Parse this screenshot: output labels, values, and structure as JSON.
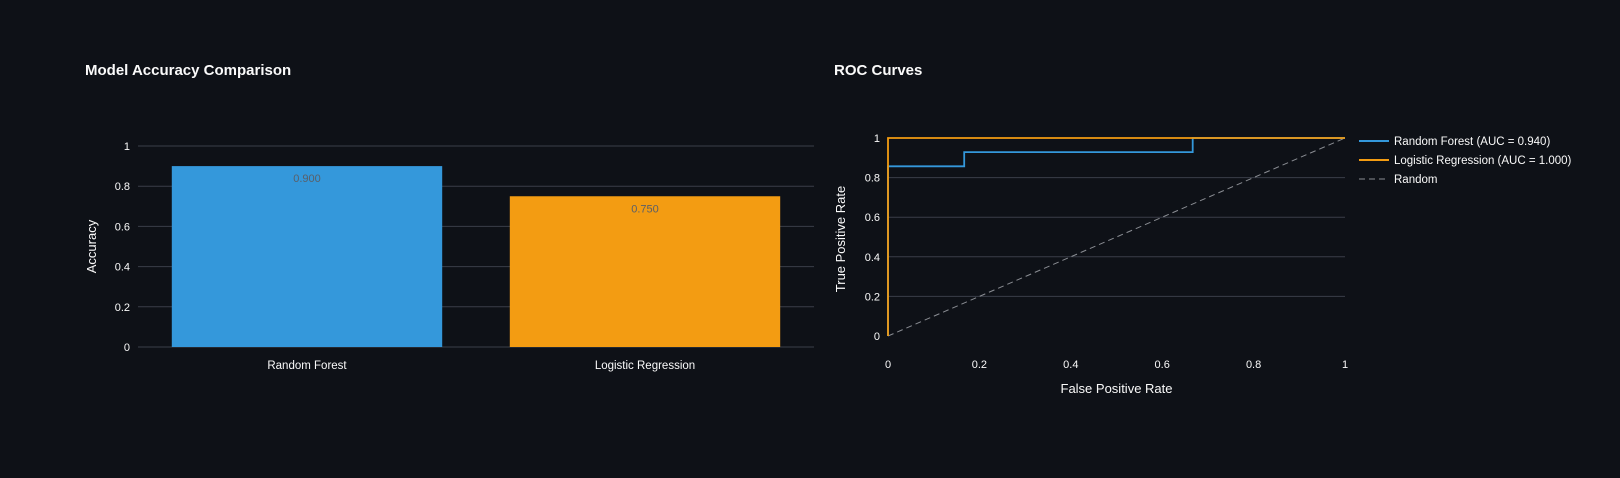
{
  "colors": {
    "background": "#0e1117",
    "text": "#fafafa",
    "grid": "#3a3e48",
    "random_forest": "#3498db",
    "logistic_regression": "#f39c12",
    "random_line": "#8a8d93",
    "bar_label": "#5a5f68"
  },
  "chart_data": [
    {
      "type": "bar",
      "title": "Model Accuracy Comparison",
      "xlabel": "",
      "ylabel": "Accuracy",
      "ylim": [
        0,
        1
      ],
      "yticks": [
        "0",
        "0.2",
        "0.4",
        "0.6",
        "0.8",
        "1"
      ],
      "grid": true,
      "categories": [
        "Random Forest",
        "Logistic Regression"
      ],
      "values": [
        0.9,
        0.75
      ],
      "value_labels": [
        "0.900",
        "0.750"
      ],
      "bar_colors": [
        "#3498db",
        "#f39c12"
      ]
    },
    {
      "type": "line",
      "title": "ROC Curves",
      "xlabel": "False Positive Rate",
      "ylabel": "True Positive Rate",
      "xlim": [
        0,
        1
      ],
      "ylim": [
        0,
        1
      ],
      "xticks": [
        "0",
        "0.2",
        "0.4",
        "0.6",
        "0.8",
        "1"
      ],
      "yticks": [
        "0",
        "0.2",
        "0.4",
        "0.6",
        "0.8",
        "1"
      ],
      "grid": true,
      "legend_position": "right",
      "series": [
        {
          "name": "Random Forest (AUC = 0.940)",
          "color": "#3498db",
          "dash": "solid",
          "x": [
            0,
            0,
            0.1667,
            0.1667,
            0.6667,
            0.6667,
            1
          ],
          "y": [
            0,
            0.857,
            0.857,
            0.929,
            0.929,
            1,
            1
          ]
        },
        {
          "name": "Logistic Regression (AUC = 1.000)",
          "color": "#f39c12",
          "dash": "solid",
          "x": [
            0,
            0,
            1
          ],
          "y": [
            0,
            1,
            1
          ]
        },
        {
          "name": "Random",
          "color": "#8a8d93",
          "dash": "dashed",
          "x": [
            0,
            1
          ],
          "y": [
            0,
            1
          ]
        }
      ]
    }
  ]
}
